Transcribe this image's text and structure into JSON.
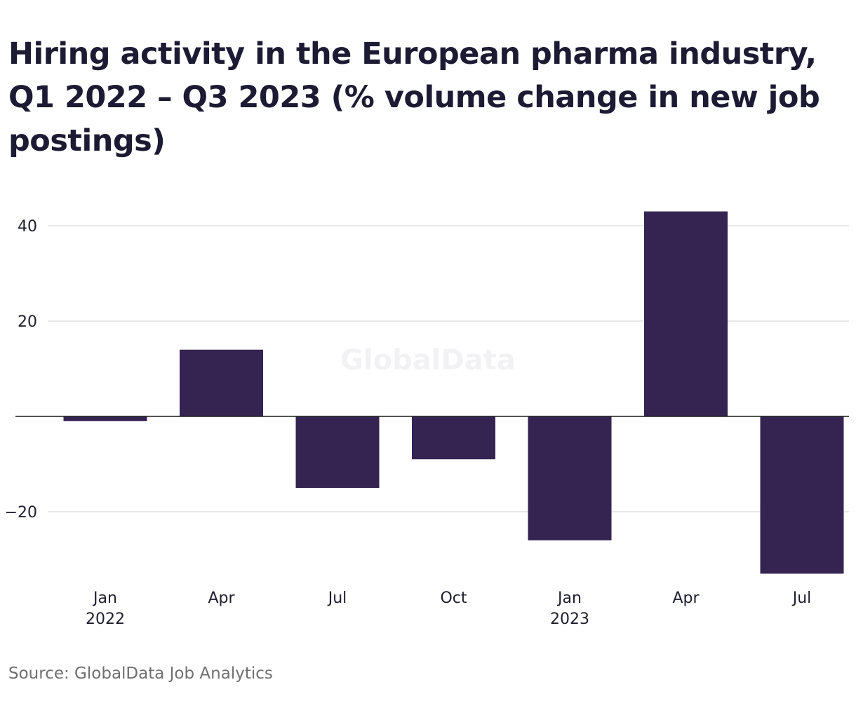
{
  "title": "Hiring activity in the European pharma industry, Q1 2022 – Q3 2023 (% volume change in new job postings)",
  "source": "Source: GlobalData Job Analytics",
  "watermark": "GlobalData",
  "colors": {
    "bar": "#352452",
    "grid": "#d9d9d9",
    "zero_line": "#1a1a1a"
  },
  "chart_data": {
    "type": "bar",
    "title": "Hiring activity in the European pharma industry, Q1 2022 – Q3 2023 (% volume change in new job postings)",
    "xlabel": "",
    "ylabel": "",
    "categories": [
      "Q1 2022",
      "Q2 2022",
      "Q3 2022",
      "Q4 2022",
      "Q1 2023",
      "Q2 2023",
      "Q3 2023"
    ],
    "x_tick_labels": [
      [
        "Jan",
        "2022"
      ],
      [
        "Apr"
      ],
      [
        "Jul"
      ],
      [
        "Oct"
      ],
      [
        "Jan",
        "2023"
      ],
      [
        "Apr"
      ],
      [
        "Jul"
      ]
    ],
    "values": [
      -1,
      14,
      -15,
      -9,
      -26,
      43,
      -33
    ],
    "ylim": [
      -34,
      46
    ],
    "yticks": [
      -20,
      20,
      40
    ],
    "ytick_labels": [
      "−20",
      "20",
      "40"
    ],
    "grid": true,
    "legend": "none"
  }
}
